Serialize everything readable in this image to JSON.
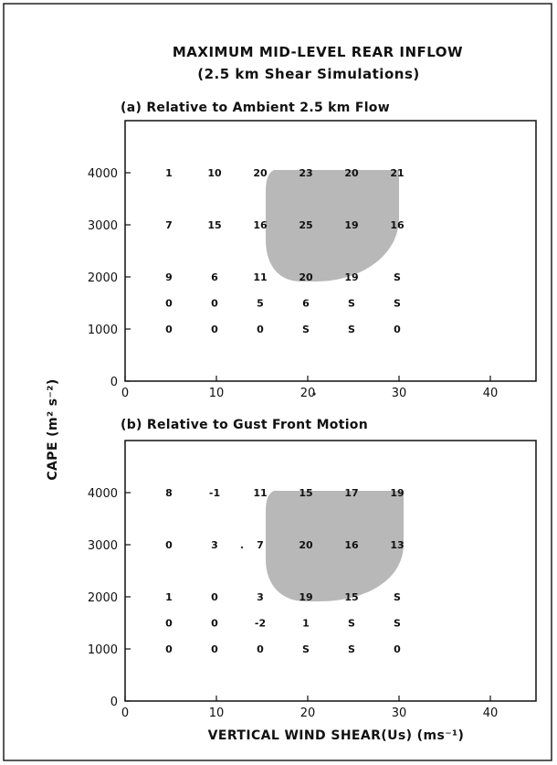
{
  "figure": {
    "title_line1": "MAXIMUM MID-LEVEL REAR INFLOW",
    "title_line2": "(2.5 km Shear Simulations)",
    "ylabel": "CAPE (m² s⁻²)",
    "xlabel": "VERTICAL WIND SHEAR(Us) (ms⁻¹)",
    "shading_color": "#b8b8b8"
  },
  "chart_data": [
    {
      "type": "table",
      "title": "(a) Relative to Ambient 2.5 km Flow",
      "xlim": [
        0,
        45
      ],
      "ylim": [
        0,
        5000
      ],
      "xticks": [
        0,
        10,
        20,
        30,
        40
      ],
      "yticks": [
        0,
        1000,
        2000,
        3000,
        4000
      ],
      "x": [
        5,
        10,
        15,
        20,
        25,
        30
      ],
      "y": [
        4000,
        3000,
        2000,
        1500,
        1000
      ],
      "cells": [
        [
          "1",
          "10",
          "20",
          "23",
          "20",
          "21"
        ],
        [
          "7",
          "15",
          "16",
          "25",
          "19",
          "16"
        ],
        [
          "9",
          "6",
          "11",
          "20",
          "19",
          "S"
        ],
        [
          "0",
          "0",
          "5",
          "6",
          "S",
          "S"
        ],
        [
          "0",
          "0",
          "0",
          "S",
          "S",
          "0"
        ]
      ]
    },
    {
      "type": "table",
      "title": "(b) Relative to Gust Front Motion",
      "xlim": [
        0,
        45
      ],
      "ylim": [
        0,
        5000
      ],
      "xticks": [
        0,
        10,
        20,
        30,
        40
      ],
      "yticks": [
        0,
        1000,
        2000,
        3000,
        4000
      ],
      "x": [
        5,
        10,
        15,
        20,
        25,
        30
      ],
      "y": [
        4000,
        3000,
        2000,
        1500,
        1000
      ],
      "cells": [
        [
          "8",
          "-1",
          "11",
          "15",
          "17",
          "19"
        ],
        [
          "0",
          "3",
          "7",
          "20",
          "16",
          "13"
        ],
        [
          "1",
          "0",
          "3",
          "19",
          "15",
          "S"
        ],
        [
          "0",
          "0",
          "-2",
          "1",
          "S",
          "S"
        ],
        [
          "0",
          "0",
          "0",
          "S",
          "S",
          "0"
        ]
      ]
    }
  ]
}
